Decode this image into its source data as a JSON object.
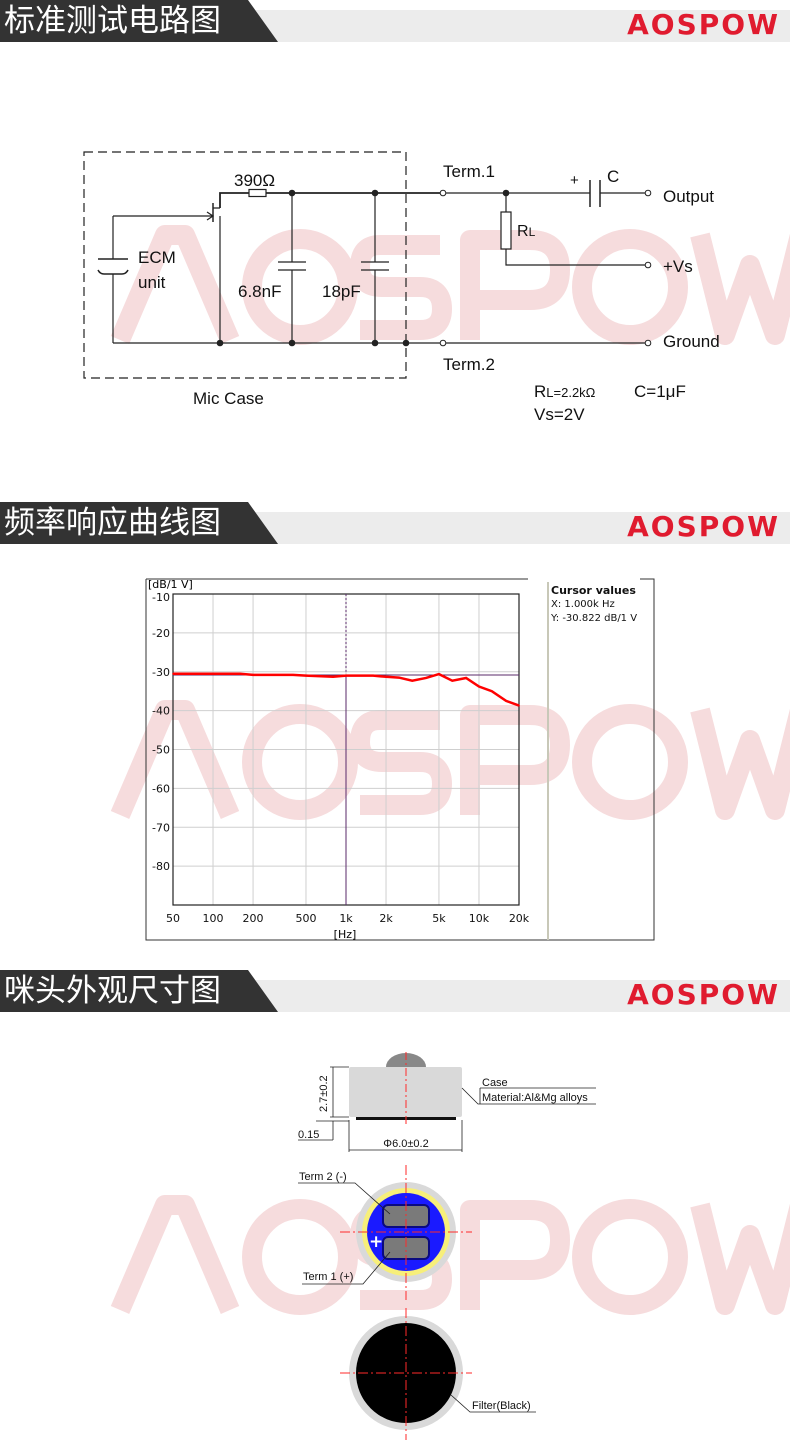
{
  "brand": {
    "logo": "AOSPOW",
    "color": "#e01b2f",
    "watermark": "AOSPOW"
  },
  "sections": [
    {
      "title": "标准测试电路图"
    },
    {
      "title": "频率响应曲线图"
    },
    {
      "title": "咪头外观尺寸图"
    }
  ],
  "circuit": {
    "resistor": "390Ω",
    "ecm_line1": "ECM",
    "ecm_line2": "unit",
    "cap1": "6.8nF",
    "cap2": "18pF",
    "term1": "Term.1",
    "term2": "Term.2",
    "cap_plus": "+",
    "cap_label": "C",
    "rl_label_r": "R",
    "rl_label_l": "L",
    "output": "Output",
    "vs": "+Vs",
    "ground": "Ground",
    "mic_case": "Mic Case",
    "spec_rl_r": "R",
    "spec_rl_rest": "L=2.2kΩ",
    "spec_c": "C=1μF",
    "spec_vs": "Vs=2V"
  },
  "chart_data": {
    "type": "line",
    "ylabel": "[dB/1 V]",
    "xlabel": "[Hz]",
    "x_scale": "log",
    "xlim": [
      50,
      20000
    ],
    "ylim": [
      -90,
      -10
    ],
    "grid": true,
    "x_ticks": [
      50,
      100,
      200,
      500,
      1000,
      2000,
      5000,
      10000,
      20000
    ],
    "x_tick_labels": [
      "50",
      "100",
      "200",
      "500",
      "1k",
      "2k",
      "5k",
      "10k",
      "20k"
    ],
    "y_ticks": [
      -10,
      -20,
      -30,
      -40,
      -50,
      -60,
      -70,
      -80
    ],
    "y_tick_labels": [
      "-10",
      "-20",
      "-30",
      "-40",
      "-50",
      "-60",
      "-70",
      "-80"
    ],
    "series": [
      {
        "color": "#ff0000",
        "x": [
          50,
          100,
          160,
          200,
          400,
          500,
          800,
          1000,
          1600,
          2000,
          2500,
          3150,
          4000,
          5000,
          6300,
          8000,
          10000,
          12500,
          16000,
          20000
        ],
        "y": [
          -30.5,
          -30.5,
          -30.5,
          -30.8,
          -30.8,
          -31.0,
          -31.3,
          -31.0,
          -31.0,
          -31.3,
          -31.5,
          -32.3,
          -31.6,
          -30.6,
          -32.3,
          -31.6,
          -33.8,
          -35.0,
          -37.5,
          -38.7
        ]
      }
    ],
    "cursor": {
      "x": 1000,
      "y": -30.822,
      "color": "#5a2a6a"
    },
    "cursor_panel": {
      "title": "Cursor values",
      "x_text": "X: 1.000k Hz",
      "y_text": "Y: -30.822 dB/1 V"
    }
  },
  "dimensions": {
    "height": "2.7±0.2",
    "thickness": "0.15",
    "diameter": "Φ6.0±0.2",
    "case": "Case",
    "material": "Material:Al&Mg alloys",
    "term2": "Term 2 (-)",
    "term1": "Term 1 (+)",
    "plus": "+",
    "filter": "Filter(Black)",
    "colors": {
      "pcb": "#1a1aff",
      "ring": "#f7ef7a",
      "case": "#d9d9d9",
      "filter": "#000000",
      "centerline": "#ff2a2a"
    }
  }
}
